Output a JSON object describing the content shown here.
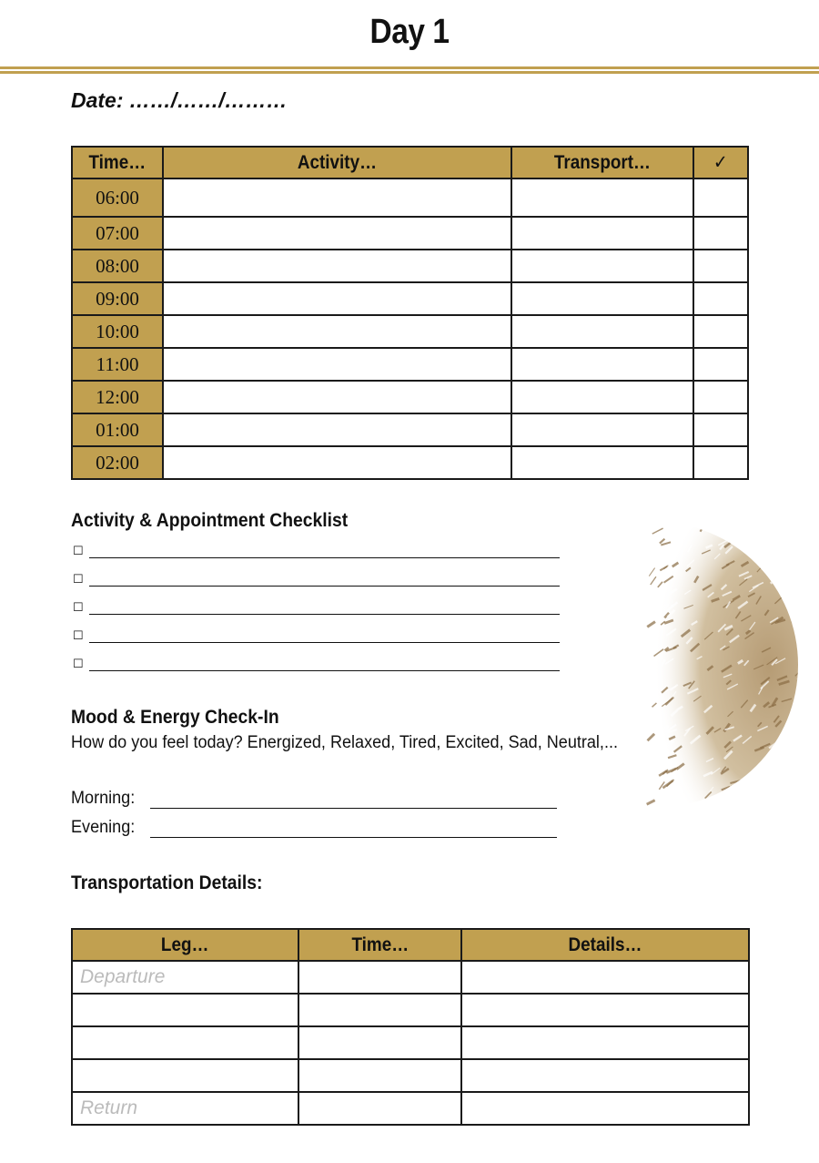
{
  "title": "Day 1",
  "date_label": "Date: ……/……/………",
  "accent_color": "#c1a050",
  "schedule": {
    "headers": [
      "Time…",
      "Activity…",
      "Transport…",
      "✓"
    ],
    "times": [
      "06:00",
      "07:00",
      "08:00",
      "09:00",
      "10:00",
      "11:00",
      "12:00",
      "01:00",
      "02:00"
    ]
  },
  "checklist": {
    "heading": "Activity & Appointment Checklist",
    "box": "☐",
    "count": 5
  },
  "mood": {
    "heading": "Mood & Energy Check-In",
    "prompt": "How do you feel today? Energized, Relaxed, Tired, Excited, Sad, Neutral,...",
    "morning_label": "Morning:",
    "evening_label": "Evening:"
  },
  "transport": {
    "heading": "Transportation Details:",
    "headers": [
      "Leg…",
      "Time…",
      "Details…"
    ],
    "placeholders": [
      "Departure",
      "",
      "",
      "",
      "Return"
    ]
  }
}
